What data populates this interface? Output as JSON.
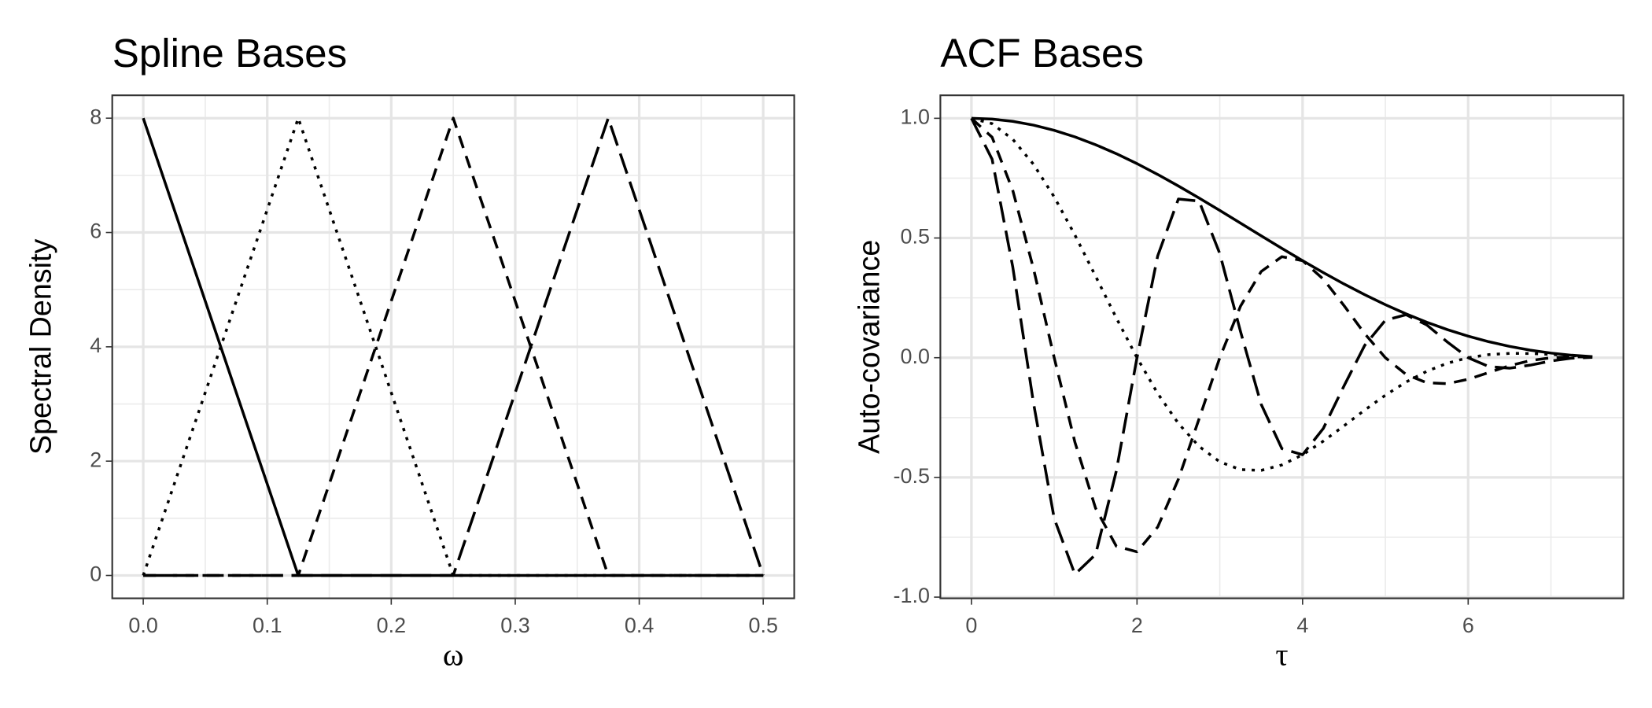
{
  "chart_data": [
    {
      "type": "line",
      "title": "Spline Bases",
      "x_label": "ω",
      "y_label": "Spectral Density",
      "x": [
        0,
        0.125,
        0.25,
        0.375,
        0.5
      ],
      "series": [
        {
          "color": "#000000",
          "dash": "solid",
          "values": [
            8,
            0,
            0,
            0,
            0
          ]
        },
        {
          "color": "#000000",
          "dash": "dotted",
          "values": [
            0,
            8,
            0,
            0,
            0
          ]
        },
        {
          "color": "#000000",
          "dash": "dashed",
          "values": [
            0,
            0,
            8,
            0,
            0
          ]
        },
        {
          "color": "#000000",
          "dash": "longdash",
          "values": [
            0,
            0,
            0,
            8,
            0
          ]
        }
      ],
      "xlim": [
        -0.025,
        0.525
      ],
      "ylim": [
        -0.4,
        8.4
      ],
      "xticks": [
        {
          "value": 0,
          "label": "0.0"
        },
        0.1,
        0.2,
        0.3,
        0.4,
        0.5
      ],
      "yticks": [
        0,
        2,
        4,
        6,
        8
      ],
      "minor_xticks": [
        0.05,
        0.15,
        0.25,
        0.35,
        0.45
      ],
      "minor_yticks": [
        1,
        3,
        5,
        7
      ],
      "grid": true
    },
    {
      "type": "line",
      "title": "ACF Bases",
      "x_label": "τ",
      "y_label": "Auto-covariance",
      "x": [
        0,
        0.25,
        0.5,
        0.75,
        1,
        1.25,
        1.5,
        1.75,
        2,
        2.25,
        2.5,
        2.75,
        3,
        3.25,
        3.5,
        3.75,
        4,
        4.25,
        4.5,
        4.75,
        5,
        5.25,
        5.5,
        5.75,
        6,
        6.25,
        6.5,
        6.75,
        7,
        7.25,
        7.5
      ],
      "series": [
        {
          "color": "#000000",
          "dash": "solid",
          "values": [
            1,
            0.9968,
            0.9872,
            0.9714,
            0.9497,
            0.9223,
            0.8896,
            0.8522,
            0.8106,
            0.7654,
            0.7173,
            0.6669,
            0.615,
            0.5622,
            0.5092,
            0.4567,
            0.4053,
            0.3556,
            0.308,
            0.2632,
            0.2214,
            0.183,
            0.1482,
            0.1172,
            0.0901,
            0.0668,
            0.0474,
            0.0316,
            0.0194,
            0.0104,
            0.0044
          ]
        },
        {
          "color": "#000000",
          "dash": "dotted",
          "values": [
            1,
            0.9776,
            0.9121,
            0.8077,
            0.6715,
            0.5124,
            0.3404,
            0.1662,
            0,
            -0.1493,
            -0.2745,
            -0.3705,
            -0.4349,
            -0.4674,
            -0.4704,
            -0.4479,
            -0.4053,
            -0.3487,
            -0.2846,
            -0.2188,
            -0.1566,
            -0.1017,
            -0.0567,
            -0.0229,
            0,
            0.013,
            0.0181,
            0.0176,
            0.0137,
            0.0086,
            0.0041
          ]
        },
        {
          "color": "#000000",
          "dash": "dashed",
          "values": [
            1,
            0.9209,
            0.6981,
            0.3717,
            0,
            -0.3529,
            -0.629,
            -0.7873,
            -0.8106,
            -0.7071,
            -0.5072,
            -0.2552,
            0,
            0.2151,
            0.3601,
            0.4219,
            0.4053,
            0.3285,
            0.2178,
            0.1007,
            0,
            -0.07,
            -0.1048,
            -0.1083,
            -0.0901,
            -0.0617,
            -0.0335,
            -0.0121,
            0,
            0.004,
            0.0031
          ]
        },
        {
          "color": "#000000",
          "dash": "longdash",
          "values": [
            1,
            0.8288,
            0.3778,
            -0.1895,
            -0.6715,
            -0.9045,
            -0.8219,
            -0.4734,
            0,
            0.4252,
            0.6627,
            0.6541,
            0.4349,
            0.1097,
            -0.1949,
            -0.3797,
            -0.4053,
            -0.2956,
            -0.1179,
            0.0513,
            0.1566,
            0.1795,
            0.1369,
            0.0651,
            0,
            -0.0371,
            -0.0438,
            -0.031,
            -0.0137,
            -0.002,
            0.0017
          ]
        }
      ],
      "xlim": [
        -0.375,
        7.875
      ],
      "ylim": [
        -1.005,
        1.096
      ],
      "xticks": [
        0,
        2,
        4,
        6
      ],
      "yticks": [
        {
          "value": -1,
          "label": "-1.0"
        },
        -0.5,
        {
          "value": 0,
          "label": "0.0"
        },
        0.5,
        {
          "value": 1,
          "label": "1.0"
        }
      ],
      "minor_xticks": [
        1,
        3,
        5,
        7
      ],
      "minor_yticks": [
        -0.75,
        -0.25,
        0.25,
        0.75
      ],
      "grid": true
    }
  ]
}
